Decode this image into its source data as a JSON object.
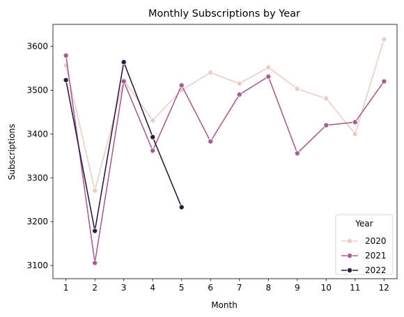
{
  "chart_data": {
    "type": "line",
    "title": "Monthly Subscriptions by Year",
    "xlabel": "Month",
    "ylabel": "Subscriptions",
    "x": [
      1,
      2,
      3,
      4,
      5,
      6,
      7,
      8,
      9,
      10,
      11,
      12
    ],
    "xlim": [
      0.55,
      12.45
    ],
    "ylim": [
      3070,
      3650
    ],
    "yticks": [
      3100,
      3200,
      3300,
      3400,
      3500,
      3600
    ],
    "grid": false,
    "legend": {
      "title": "Year",
      "placement": "lower-right"
    },
    "series": [
      {
        "name": "2020",
        "color": "#ebcdc8",
        "x": [
          1,
          2,
          3,
          4,
          5,
          6,
          7,
          8,
          9,
          10,
          11,
          12
        ],
        "values": [
          3556,
          3271,
          3523,
          3431,
          3500,
          3540,
          3515,
          3552,
          3503,
          3481,
          3400,
          3616
        ]
      },
      {
        "name": "2021",
        "color": "#a85e8f",
        "x": [
          1,
          2,
          3,
          4,
          5,
          6,
          7,
          8,
          9,
          10,
          11,
          12
        ],
        "values": [
          3579,
          3106,
          3520,
          3362,
          3511,
          3383,
          3490,
          3531,
          3356,
          3420,
          3427,
          3520
        ]
      },
      {
        "name": "2022",
        "color": "#2b1b3d",
        "x": [
          1,
          2,
          3,
          4,
          5
        ],
        "values": [
          3523,
          3179,
          3564,
          3393,
          3233
        ]
      }
    ]
  }
}
